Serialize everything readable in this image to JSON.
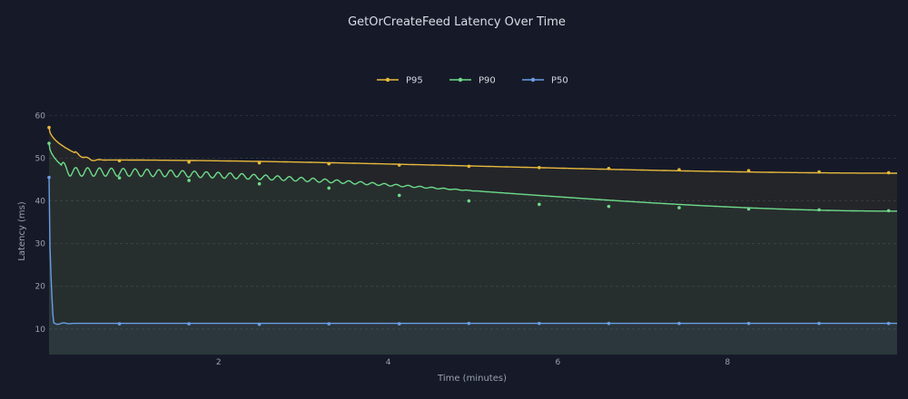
{
  "chart_data": {
    "type": "line",
    "title": "GetOrCreateFeed Latency Over Time",
    "xlabel": "Time (minutes)",
    "ylabel": "Latency (ms)",
    "xlim": [
      0,
      10
    ],
    "ylim": [
      4,
      62
    ],
    "x_ticks": [
      2,
      4,
      6,
      8
    ],
    "y_ticks": [
      10,
      20,
      30,
      40,
      50,
      60
    ],
    "grid": true,
    "legend_position": "top-center",
    "series": [
      {
        "name": "P95",
        "color": "#e8b93c",
        "fill": "rgba(232,185,60,0.07)",
        "start": 57.2,
        "settle": 49.6,
        "settle_x": 0.5,
        "end": 46.5,
        "oscillation": 0.6,
        "osc_decay_x": 0.7,
        "marker_values": [
          49.4,
          49.1,
          48.9,
          48.7,
          48.4,
          48.1,
          47.8,
          47.6,
          47.3,
          47.1,
          46.8,
          46.6
        ]
      },
      {
        "name": "P90",
        "color": "#6ddb8a",
        "fill": "rgba(109,219,138,0.06)",
        "start": 53.5,
        "settle": 46.8,
        "settle_x": 0.25,
        "end": 37.6,
        "oscillation": 1.1,
        "osc_decay_x": 5.2,
        "marker_values": [
          45.4,
          44.8,
          44.0,
          43.0,
          41.3,
          40.0,
          39.2,
          38.7,
          38.4,
          38.1,
          37.9,
          37.7
        ]
      },
      {
        "name": "P50",
        "color": "#6a9ee6",
        "fill": "rgba(106,158,230,0.08)",
        "start": 45.5,
        "settle": 11.3,
        "settle_x": 0.05,
        "end": 11.3,
        "oscillation": 0.3,
        "osc_decay_x": 0.3,
        "marker_values": [
          11.2,
          11.2,
          11.1,
          11.2,
          11.2,
          11.3,
          11.3,
          11.3,
          11.3,
          11.3,
          11.3,
          11.3
        ]
      }
    ],
    "marker_x": [
      0.0,
      0.83,
      1.65,
      2.48,
      3.3,
      4.13,
      4.95,
      5.78,
      6.6,
      7.43,
      8.25,
      9.08,
      9.9
    ]
  }
}
